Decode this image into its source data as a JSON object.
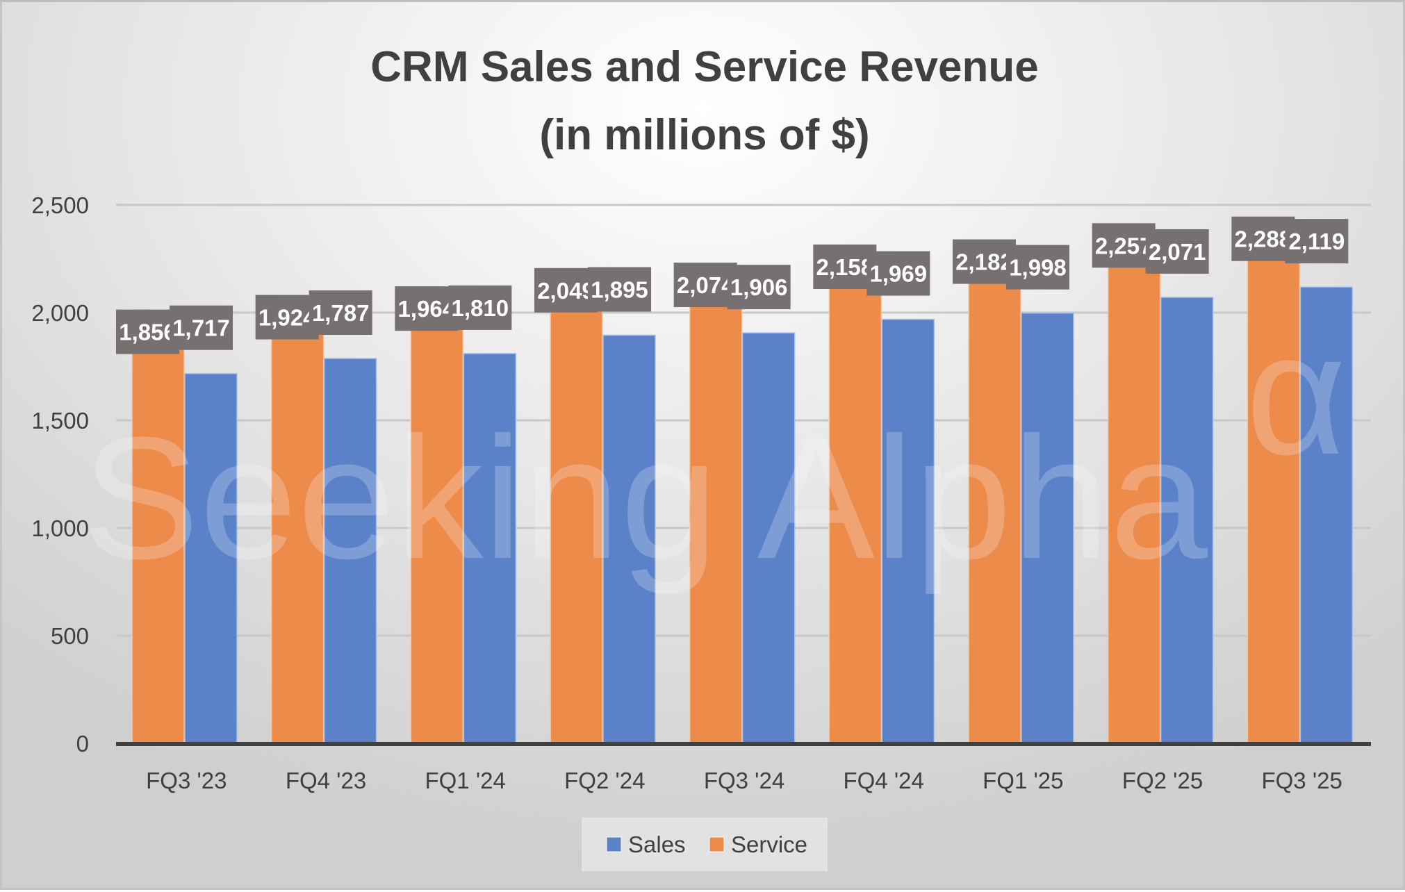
{
  "chart_data": {
    "type": "bar",
    "title": "CRM Sales and Service Revenue",
    "subtitle": "(in millions of $)",
    "xlabel": "",
    "ylabel": "",
    "ylim": [
      0,
      2500
    ],
    "yticks": [
      0,
      500,
      1000,
      1500,
      2000,
      2500
    ],
    "ytick_labels": [
      "0",
      "500",
      "1,000",
      "1,500",
      "2,000",
      "2,500"
    ],
    "grid": true,
    "legend_position": "bottom",
    "categories": [
      "FQ3 '23",
      "FQ4 '23",
      "FQ1 '24",
      "FQ2 '24",
      "FQ3 '24",
      "FQ4 '24",
      "FQ1 '25",
      "FQ2 '25",
      "FQ3 '25"
    ],
    "series": [
      {
        "name": "Service",
        "color": "#ED8B4B",
        "values": [
          1856,
          1924,
          1964,
          2049,
          2074,
          2158,
          2182,
          2257,
          2288
        ],
        "labels": [
          "1,856",
          "1,924",
          "1,964",
          "2,049",
          "2,074",
          "2,158",
          "2,182",
          "2,257",
          "2,288"
        ]
      },
      {
        "name": "Sales",
        "color": "#5B82C9",
        "values": [
          1717,
          1787,
          1810,
          1895,
          1906,
          1969,
          1998,
          2071,
          2119
        ],
        "labels": [
          "1,717",
          "1,787",
          "1,810",
          "1,895",
          "1,906",
          "1,969",
          "1,998",
          "2,071",
          "2,119"
        ]
      }
    ],
    "legend": [
      {
        "name": "Sales",
        "color": "#5B82C9"
      },
      {
        "name": "Service",
        "color": "#ED8B4B"
      }
    ],
    "data_label_bg": "#767170",
    "watermark": "Seeking Alpha",
    "watermark_symbol": "α"
  }
}
